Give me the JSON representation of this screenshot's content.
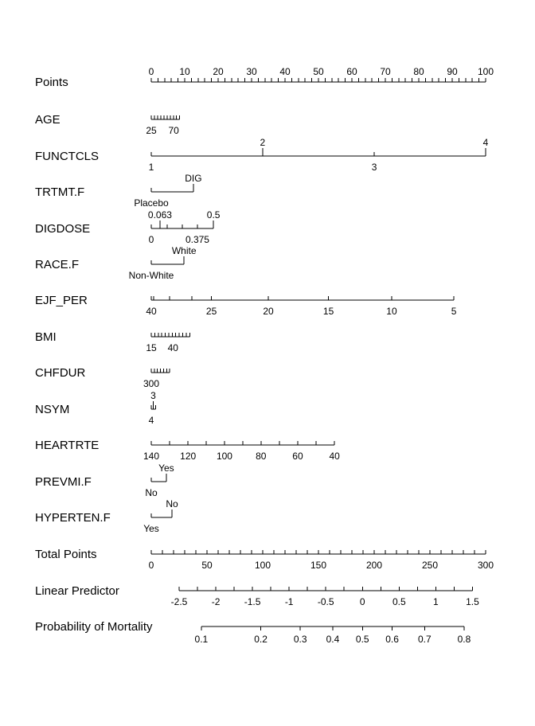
{
  "chart_data": {
    "type": "nomogram",
    "title": "",
    "rows": [
      {
        "name": "Points",
        "label": "Points",
        "kind": "scale",
        "range": [
          0,
          100
        ],
        "labels_above": [
          {
            "v": 0,
            "t": "0"
          },
          {
            "v": 10,
            "t": "10"
          },
          {
            "v": 20,
            "t": "20"
          },
          {
            "v": 30,
            "t": "30"
          },
          {
            "v": 40,
            "t": "40"
          },
          {
            "v": 50,
            "t": "50"
          },
          {
            "v": 60,
            "t": "60"
          },
          {
            "v": 70,
            "t": "70"
          },
          {
            "v": 80,
            "t": "80"
          },
          {
            "v": 90,
            "t": "90"
          },
          {
            "v": 100,
            "t": "100"
          }
        ],
        "minor_step": 2,
        "major_step": 10
      },
      {
        "name": "AGE",
        "label": "AGE",
        "kind": "variable",
        "points_range": [
          0,
          8.5
        ],
        "labels_below": [
          {
            "p": 0,
            "t": "25"
          },
          {
            "p": 6.7,
            "t": "70"
          }
        ],
        "tick_count": 10
      },
      {
        "name": "FUNCTCLS",
        "label": "FUNCTCLS",
        "kind": "variable",
        "levels": [
          {
            "t": "1",
            "p": 0,
            "pos": "below"
          },
          {
            "t": "2",
            "p": 33.3,
            "pos": "above"
          },
          {
            "t": "3",
            "p": 66.7,
            "pos": "below"
          },
          {
            "t": "4",
            "p": 100,
            "pos": "above"
          }
        ]
      },
      {
        "name": "TRTMT.F",
        "label": "TRTMT.F",
        "kind": "variable",
        "levels": [
          {
            "t": "Placebo",
            "p": 0,
            "pos": "below"
          },
          {
            "t": "DIG",
            "p": 12.6,
            "pos": "above"
          }
        ]
      },
      {
        "name": "DIGDOSE",
        "label": "DIGDOSE",
        "kind": "variable",
        "levels": [
          {
            "t": "0",
            "p": 0,
            "pos": "below"
          },
          {
            "t": "0.063",
            "p": 2.6,
            "pos": "above"
          },
          {
            "t": "0.375",
            "p": 13.8,
            "pos": "below"
          },
          {
            "t": "0.5",
            "p": 18.6,
            "pos": "above"
          }
        ],
        "extra_ticks": [
          4.8,
          9.3
        ]
      },
      {
        "name": "RACE.F",
        "label": "RACE.F",
        "kind": "variable",
        "levels": [
          {
            "t": "Non-White",
            "p": 0,
            "pos": "below"
          },
          {
            "t": "White",
            "p": 9.8,
            "pos": "above"
          }
        ]
      },
      {
        "name": "EJF_PER",
        "label": "EJF_PER",
        "kind": "variable",
        "levels": [
          {
            "t": "40",
            "p": 0,
            "pos": "below"
          },
          {
            "t": "25",
            "p": 18,
            "pos": "below"
          },
          {
            "t": "20",
            "p": 35,
            "pos": "below"
          },
          {
            "t": "15",
            "p": 53,
            "pos": "below"
          },
          {
            "t": "10",
            "p": 71.9,
            "pos": "below"
          },
          {
            "t": "5",
            "p": 90.5,
            "pos": "below"
          }
        ],
        "extra_ticks": [
          0.7,
          5.5,
          12.1
        ]
      },
      {
        "name": "BMI",
        "label": "BMI",
        "kind": "variable",
        "points_range": [
          0,
          11.5
        ],
        "labels_below": [
          {
            "p": 0,
            "t": "15"
          },
          {
            "p": 6.5,
            "t": "40"
          }
        ],
        "tick_count": 12
      },
      {
        "name": "CHFDUR",
        "label": "CHFDUR",
        "kind": "variable",
        "points_range": [
          0,
          5.5
        ],
        "labels_below": [
          {
            "p": 0,
            "t": "300"
          }
        ],
        "tick_count": 7
      },
      {
        "name": "NSYM",
        "label": "NSYM",
        "kind": "variable",
        "levels": [
          {
            "t": "4",
            "p": 0,
            "pos": "below"
          },
          {
            "t": "3",
            "p": 0.6,
            "pos": "above"
          }
        ],
        "extra_ticks": [
          1.3
        ]
      },
      {
        "name": "HEARTRTE",
        "label": "HEARTRTE",
        "kind": "variable",
        "levels": [
          {
            "t": "140",
            "p": 0,
            "pos": "below"
          },
          {
            "t": "120",
            "p": 11,
            "pos": "below"
          },
          {
            "t": "100",
            "p": 21.9,
            "pos": "below"
          },
          {
            "t": "80",
            "p": 32.8,
            "pos": "below"
          },
          {
            "t": "60",
            "p": 43.8,
            "pos": "below"
          },
          {
            "t": "40",
            "p": 54.8,
            "pos": "below"
          }
        ],
        "extra_ticks": [
          5.5,
          16.4,
          27.4,
          38.3,
          49.3
        ]
      },
      {
        "name": "PREVMI.F",
        "label": "PREVMI.F",
        "kind": "variable",
        "levels": [
          {
            "t": "No",
            "p": 0,
            "pos": "below"
          },
          {
            "t": "Yes",
            "p": 4.5,
            "pos": "above"
          }
        ]
      },
      {
        "name": "HYPERTEN.F",
        "label": "HYPERTEN.F",
        "kind": "variable",
        "levels": [
          {
            "t": "Yes",
            "p": 0,
            "pos": "below"
          },
          {
            "t": "No",
            "p": 6.2,
            "pos": "above"
          }
        ]
      },
      {
        "name": "Total Points",
        "label": "Total Points",
        "kind": "total",
        "range": [
          0,
          300
        ],
        "labels_below": [
          {
            "v": 0,
            "t": "0"
          },
          {
            "v": 50,
            "t": "50"
          },
          {
            "v": 100,
            "t": "100"
          },
          {
            "v": 150,
            "t": "150"
          },
          {
            "v": 200,
            "t": "200"
          },
          {
            "v": 250,
            "t": "250"
          },
          {
            "v": 300,
            "t": "300"
          }
        ],
        "minor_step": 10
      },
      {
        "name": "Linear Predictor",
        "label": "Linear Predictor",
        "kind": "linear",
        "labels_below": [
          {
            "v": -2.5,
            "t": "-2.5"
          },
          {
            "v": -2,
            "t": "-2"
          },
          {
            "v": -1.5,
            "t": "-1.5"
          },
          {
            "v": -1,
            "t": "-1"
          },
          {
            "v": -0.5,
            "t": "-0.5"
          },
          {
            "v": 0,
            "t": "0"
          },
          {
            "v": 0.5,
            "t": "0.5"
          },
          {
            "v": 1,
            "t": "1"
          },
          {
            "v": 1.5,
            "t": "1.5"
          }
        ],
        "lp_at_total_0": -2.88,
        "lp_per_total_point": 0.0152,
        "minor_step": 0.25
      },
      {
        "name": "Probability of Mortality",
        "label": "Probability of Mortality",
        "kind": "probability",
        "labels_below": [
          {
            "v": 0.1,
            "t": "0.1"
          },
          {
            "v": 0.2,
            "t": "0.2"
          },
          {
            "v": 0.3,
            "t": "0.3"
          },
          {
            "v": 0.4,
            "t": "0.4"
          },
          {
            "v": 0.5,
            "t": "0.5"
          },
          {
            "v": 0.6,
            "t": "0.6"
          },
          {
            "v": 0.7,
            "t": "0.7"
          },
          {
            "v": 0.8,
            "t": "0.8"
          }
        ]
      }
    ]
  }
}
